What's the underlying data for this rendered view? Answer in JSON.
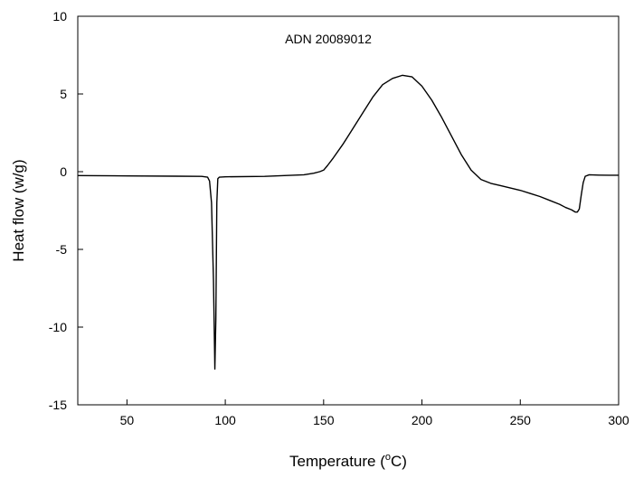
{
  "chart_data": {
    "type": "line",
    "title": "",
    "annotation": "ADN 20089012",
    "xlabel": {
      "prefix": "Temperature (",
      "superscript": "o",
      "suffix": "C)"
    },
    "ylabel": "Heat flow (w/g)",
    "xlim": [
      25,
      300
    ],
    "ylim": [
      -15,
      10
    ],
    "xticks": [
      50,
      100,
      150,
      200,
      250,
      300
    ],
    "yticks": [
      -15,
      -10,
      -5,
      0,
      5,
      10
    ],
    "grid": false,
    "series": [
      {
        "x": [
          25,
          50,
          75,
          88,
          91,
          92,
          93,
          94,
          94.7,
          95.2,
          95.7,
          96.2,
          97,
          100,
          120,
          140,
          145,
          148,
          150,
          152,
          155,
          160,
          165,
          170,
          175,
          180,
          185,
          190,
          195,
          200,
          205,
          210,
          215,
          220,
          225,
          230,
          235,
          240,
          245,
          250,
          255,
          260,
          265,
          270,
          273,
          276,
          278,
          279,
          280,
          281,
          282,
          283,
          285,
          290,
          295,
          300
        ],
        "y": [
          -0.25,
          -0.27,
          -0.29,
          -0.3,
          -0.35,
          -0.6,
          -2.0,
          -7.0,
          -12.7,
          -9.5,
          -2.0,
          -0.45,
          -0.35,
          -0.33,
          -0.3,
          -0.2,
          -0.1,
          0.0,
          0.1,
          0.4,
          0.9,
          1.8,
          2.8,
          3.8,
          4.8,
          5.6,
          6.0,
          6.2,
          6.1,
          5.5,
          4.6,
          3.5,
          2.3,
          1.1,
          0.1,
          -0.5,
          -0.75,
          -0.9,
          -1.05,
          -1.2,
          -1.4,
          -1.6,
          -1.85,
          -2.1,
          -2.3,
          -2.45,
          -2.6,
          -2.6,
          -2.4,
          -1.5,
          -0.7,
          -0.3,
          -0.2,
          -0.22,
          -0.23,
          -0.23
        ]
      }
    ]
  }
}
